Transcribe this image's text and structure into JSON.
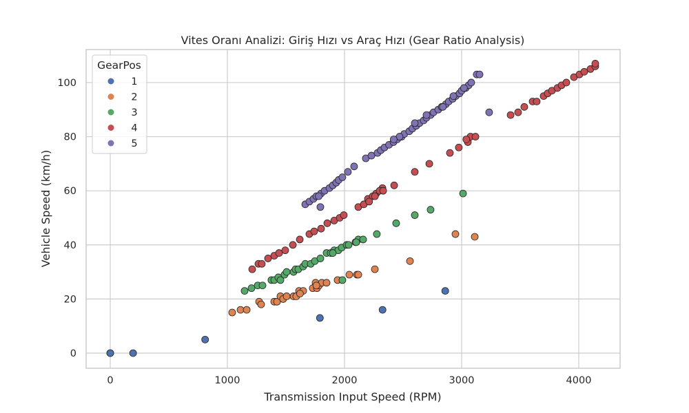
{
  "chart_data": {
    "type": "scatter",
    "title": "Vites Oranı Analizi: Giriş Hızı vs Araç Hızı (Gear Ratio Analysis)",
    "xlabel": "Transmission Input Speed (RPM)",
    "ylabel": "Vehicle Speed (km/h)",
    "xlim": [
      -206,
      4353
    ],
    "ylim": [
      -5.6,
      112.2
    ],
    "xticks": [
      0,
      1000,
      2000,
      3000,
      4000
    ],
    "xtick_labels": [
      "0",
      "1000",
      "2000",
      "3000",
      "4000"
    ],
    "yticks": [
      0,
      20,
      40,
      60,
      80,
      100
    ],
    "ytick_labels": [
      "0",
      "20",
      "40",
      "60",
      "80",
      "100"
    ],
    "grid": true,
    "legend": {
      "title": "GearPos",
      "placement": "top-left"
    },
    "series": [
      {
        "name": "1",
        "color": "#4c72b0",
        "points": [
          [
            0,
            0
          ],
          [
            0,
            0
          ],
          [
            195,
            0
          ],
          [
            810,
            5
          ],
          [
            1790,
            13
          ],
          [
            2325,
            16
          ],
          [
            2860,
            23
          ]
        ]
      },
      {
        "name": "2",
        "color": "#dd8452",
        "points": [
          [
            1041,
            15
          ],
          [
            1112,
            16
          ],
          [
            1165,
            16
          ],
          [
            1271,
            19
          ],
          [
            1288,
            18
          ],
          [
            1400,
            19
          ],
          [
            1424,
            19
          ],
          [
            1453,
            21
          ],
          [
            1476,
            20
          ],
          [
            1506,
            21
          ],
          [
            1565,
            21
          ],
          [
            1588,
            21
          ],
          [
            1612,
            23
          ],
          [
            1647,
            23
          ],
          [
            1729,
            24
          ],
          [
            1753,
            26
          ],
          [
            1765,
            24
          ],
          [
            1782,
            25
          ],
          [
            1806,
            26
          ],
          [
            1847,
            26
          ],
          [
            1941,
            27
          ],
          [
            2041,
            29
          ],
          [
            2106,
            29
          ],
          [
            2118,
            29
          ],
          [
            2259,
            31
          ],
          [
            2559,
            34
          ],
          [
            2947,
            44
          ],
          [
            3112,
            43
          ],
          [
            1620,
            22
          ],
          [
            1760,
            25
          ]
        ]
      },
      {
        "name": "3",
        "color": "#55a868",
        "points": [
          [
            1147,
            23
          ],
          [
            1206,
            24
          ],
          [
            1259,
            25
          ],
          [
            1300,
            25
          ],
          [
            1376,
            27
          ],
          [
            1400,
            27
          ],
          [
            1435,
            28
          ],
          [
            1453,
            27
          ],
          [
            1488,
            29
          ],
          [
            1506,
            30
          ],
          [
            1565,
            30
          ],
          [
            1582,
            31
          ],
          [
            1606,
            31
          ],
          [
            1647,
            32
          ],
          [
            1665,
            33
          ],
          [
            1712,
            33
          ],
          [
            1747,
            34
          ],
          [
            1794,
            35
          ],
          [
            1847,
            37
          ],
          [
            1882,
            37
          ],
          [
            1912,
            38
          ],
          [
            1947,
            38
          ],
          [
            1976,
            39
          ],
          [
            2018,
            40
          ],
          [
            2035,
            40
          ],
          [
            2094,
            41
          ],
          [
            2118,
            42
          ],
          [
            2159,
            42
          ],
          [
            2276,
            44
          ],
          [
            2441,
            48
          ],
          [
            2600,
            51
          ],
          [
            2735,
            53
          ],
          [
            3012,
            59
          ],
          [
            1982,
            27
          ],
          [
            1900,
            37
          ],
          [
            2100,
            41
          ]
        ]
      },
      {
        "name": "4",
        "color": "#c44e52",
        "points": [
          [
            1212,
            31
          ],
          [
            1265,
            33
          ],
          [
            1294,
            33
          ],
          [
            1347,
            35
          ],
          [
            1400,
            36
          ],
          [
            1441,
            37
          ],
          [
            1494,
            38
          ],
          [
            1559,
            40
          ],
          [
            1618,
            42
          ],
          [
            1700,
            44
          ],
          [
            1741,
            45
          ],
          [
            1800,
            46
          ],
          [
            1853,
            48
          ],
          [
            1912,
            49
          ],
          [
            1959,
            50
          ],
          [
            1994,
            51
          ],
          [
            2118,
            54
          ],
          [
            2165,
            55
          ],
          [
            2200,
            57
          ],
          [
            2241,
            58
          ],
          [
            2271,
            59
          ],
          [
            2324,
            61
          ],
          [
            2424,
            62
          ],
          [
            2600,
            67
          ],
          [
            2724,
            70
          ],
          [
            2900,
            74
          ],
          [
            2976,
            76
          ],
          [
            3053,
            78
          ],
          [
            3076,
            80
          ],
          [
            3118,
            80
          ],
          [
            3418,
            88
          ],
          [
            3482,
            89
          ],
          [
            3535,
            91
          ],
          [
            3606,
            93
          ],
          [
            3641,
            93
          ],
          [
            3700,
            95
          ],
          [
            3735,
            96
          ],
          [
            3771,
            97
          ],
          [
            3818,
            98
          ],
          [
            3853,
            99
          ],
          [
            3894,
            100
          ],
          [
            3959,
            102
          ],
          [
            4006,
            103
          ],
          [
            4047,
            104
          ],
          [
            4100,
            105
          ],
          [
            4141,
            106
          ],
          [
            4141,
            107
          ],
          [
            2210,
            56
          ],
          [
            2260,
            58
          ],
          [
            2300,
            60
          ],
          [
            2330,
            60
          ],
          [
            3040,
            79
          ]
        ]
      },
      {
        "name": "5",
        "color": "#8172b3",
        "points": [
          [
            1665,
            55
          ],
          [
            1700,
            56
          ],
          [
            1735,
            57
          ],
          [
            1760,
            58
          ],
          [
            1800,
            59
          ],
          [
            1830,
            60
          ],
          [
            1871,
            61
          ],
          [
            1900,
            62
          ],
          [
            1929,
            63
          ],
          [
            1950,
            64
          ],
          [
            1982,
            65
          ],
          [
            2029,
            67
          ],
          [
            2082,
            69
          ],
          [
            2182,
            72
          ],
          [
            2230,
            73
          ],
          [
            2282,
            74
          ],
          [
            2310,
            75
          ],
          [
            2341,
            76
          ],
          [
            2380,
            77
          ],
          [
            2418,
            78
          ],
          [
            2450,
            79
          ],
          [
            2488,
            80
          ],
          [
            2510,
            81
          ],
          [
            2553,
            82
          ],
          [
            2580,
            83
          ],
          [
            2612,
            84
          ],
          [
            2640,
            85
          ],
          [
            2676,
            86
          ],
          [
            2700,
            87
          ],
          [
            2735,
            88
          ],
          [
            2760,
            89
          ],
          [
            2800,
            90
          ],
          [
            2830,
            91
          ],
          [
            2865,
            92
          ],
          [
            2890,
            93
          ],
          [
            2924,
            94
          ],
          [
            2950,
            95
          ],
          [
            2982,
            96
          ],
          [
            3000,
            97
          ],
          [
            3035,
            98
          ],
          [
            3060,
            99
          ],
          [
            3082,
            100
          ],
          [
            3129,
            103
          ],
          [
            3153,
            103
          ],
          [
            3235,
            89
          ],
          [
            1794,
            54
          ],
          [
            2470,
            80
          ],
          [
            2700,
            88
          ],
          [
            2930,
            95
          ],
          [
            3020,
            98
          ],
          [
            1780,
            58
          ],
          [
            2420,
            79
          ],
          [
            2600,
            85
          ],
          [
            2840,
            91
          ]
        ]
      }
    ]
  }
}
